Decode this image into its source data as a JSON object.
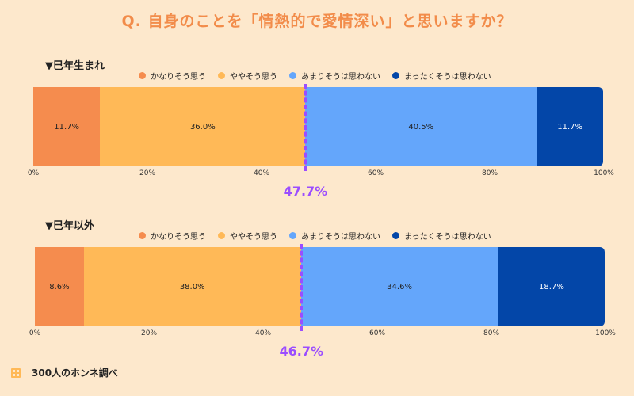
{
  "title": "Q. 自身のことを「情熱的で愛情深い」と思いますか？",
  "legend": [
    "かなりそう思う",
    "ややそう思う",
    "あまりそうは思わない",
    "まったくそうは思わない"
  ],
  "colors": [
    "#f58c4e",
    "#ffb957",
    "#64a6fb",
    "#0346a8"
  ],
  "axis_ticks": [
    "0%",
    "20%",
    "40%",
    "60%",
    "80%",
    "100%"
  ],
  "footer": "300人のホンネ調べ",
  "chart_data": [
    {
      "type": "bar",
      "title": "▼巳年生まれ",
      "categories": [
        "かなりそう思う",
        "ややそう思う",
        "あまりそうは思わない",
        "まったくそうは思わない"
      ],
      "values": [
        11.7,
        36.0,
        40.5,
        11.7
      ],
      "labels": [
        "11.7%",
        "36.0%",
        "40.5%",
        "11.7%"
      ],
      "marker_value": 47.7,
      "marker_label": "47.7%",
      "xlim": [
        0,
        100
      ]
    },
    {
      "type": "bar",
      "title": "▼巳年以外",
      "categories": [
        "かなりそう思う",
        "ややそう思う",
        "あまりそうは思わない",
        "まったくそうは思わない"
      ],
      "values": [
        8.6,
        38.0,
        34.6,
        18.7
      ],
      "labels": [
        "8.6%",
        "38.0%",
        "34.6%",
        "18.7%"
      ],
      "marker_value": 46.7,
      "marker_label": "46.7%",
      "xlim": [
        0,
        100
      ]
    }
  ]
}
